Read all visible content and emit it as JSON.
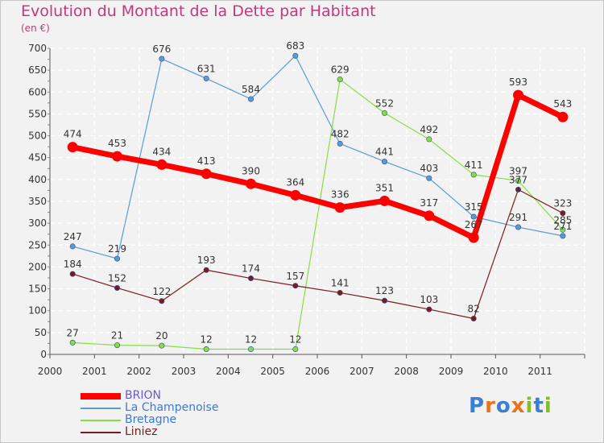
{
  "title": "Evolution du Montant de la Dette par Habitant",
  "subtitle": "(en €)",
  "logo": {
    "letters": [
      "P",
      "r",
      "o",
      "x",
      "i",
      "t",
      "i"
    ],
    "colors": [
      "#3b7fd4",
      "#e8731a",
      "#3b7fd4",
      "#e8731a",
      "#7fbf2a",
      "#3b7fd4",
      "#7fbf2a"
    ]
  },
  "chart_data": {
    "type": "line",
    "title": "Evolution du Montant de la Dette par Habitant",
    "subtitle": "(en €)",
    "x": [
      "2000",
      "2001",
      "2002",
      "2003",
      "2004",
      "2005",
      "2006",
      "2007",
      "2008",
      "2009",
      "2010",
      "2011"
    ],
    "ylim": [
      0,
      700
    ],
    "yticks": [
      0,
      50,
      100,
      150,
      200,
      250,
      300,
      350,
      400,
      450,
      500,
      550,
      600,
      650,
      700
    ],
    "grid": true,
    "legend": "bottom-left",
    "series": [
      {
        "name": "BRION",
        "color": "#ff0000",
        "values": [
          474,
          453,
          434,
          413,
          390,
          364,
          336,
          351,
          317,
          267,
          593,
          543
        ]
      },
      {
        "name": "La Champenoise",
        "color": "#5b9bd5",
        "values": [
          247,
          219,
          676,
          631,
          584,
          683,
          482,
          441,
          403,
          315,
          291,
          271
        ]
      },
      {
        "name": "Bretagne",
        "color": "#88dd44",
        "values": [
          27,
          21,
          20,
          12,
          12,
          12,
          629,
          552,
          492,
          411,
          397,
          285
        ]
      },
      {
        "name": "Liniez",
        "color": "#7a1c1c",
        "values": [
          184,
          152,
          122,
          193,
          174,
          157,
          141,
          123,
          103,
          82,
          377,
          323
        ]
      }
    ],
    "data_labels": [
      {
        "series": 0,
        "labels": [
          "474",
          "453",
          "434",
          "413",
          "390",
          "364",
          "336",
          "351",
          "317",
          "267",
          "593",
          "543"
        ]
      },
      {
        "series": 1,
        "labels": [
          "247",
          "219",
          "676",
          "631",
          "584",
          "683",
          "482",
          "441",
          "403",
          "315",
          "291",
          "271"
        ]
      },
      {
        "series": 2,
        "labels": [
          "27",
          "21",
          "20",
          "12",
          "12",
          "12",
          "629",
          "552",
          "492",
          "411",
          "397",
          "285"
        ]
      },
      {
        "series": 3,
        "labels": [
          "184",
          "152",
          "122",
          "193",
          "174",
          "157",
          "141",
          "123",
          "103",
          "82",
          "377",
          "323"
        ]
      }
    ]
  }
}
